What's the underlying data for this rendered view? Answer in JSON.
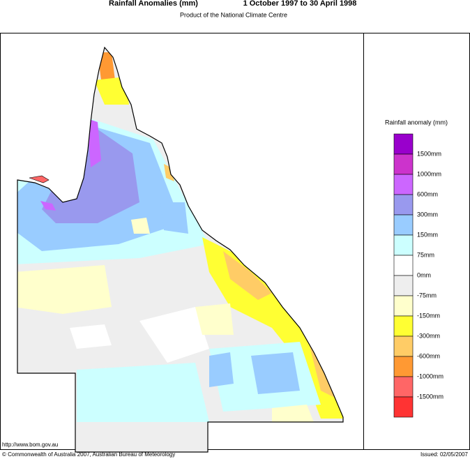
{
  "header": {
    "title": "Rainfall Anomalies (mm)",
    "period": "1 October 1997 to 30 April 1998",
    "subtitle": "Product of the National Climate Centre"
  },
  "legend": {
    "title": "Rainfall anomaly (mm)",
    "labels": [
      "1500mm",
      "1000mm",
      "600mm",
      "300mm",
      "150mm",
      "75mm",
      "0mm",
      "-75mm",
      "-150mm",
      "-300mm",
      "-600mm",
      "-1000mm",
      "-1500mm"
    ],
    "colors": [
      "#9900cc",
      "#cc33cc",
      "#cc66ff",
      "#9999ee",
      "#99ccff",
      "#ccffff",
      "#ffffff",
      "#eeeeee",
      "#ffffcc",
      "#ffff33",
      "#ffcc66",
      "#ff9933",
      "#ff6666",
      "#ff3333"
    ]
  },
  "footer": {
    "url": "http://www.bom.gov.au",
    "copyright": "© Commonwealth of Australia 2007, Australian Bureau of Meteorology",
    "issued": "Issued: 02/05/2007"
  }
}
